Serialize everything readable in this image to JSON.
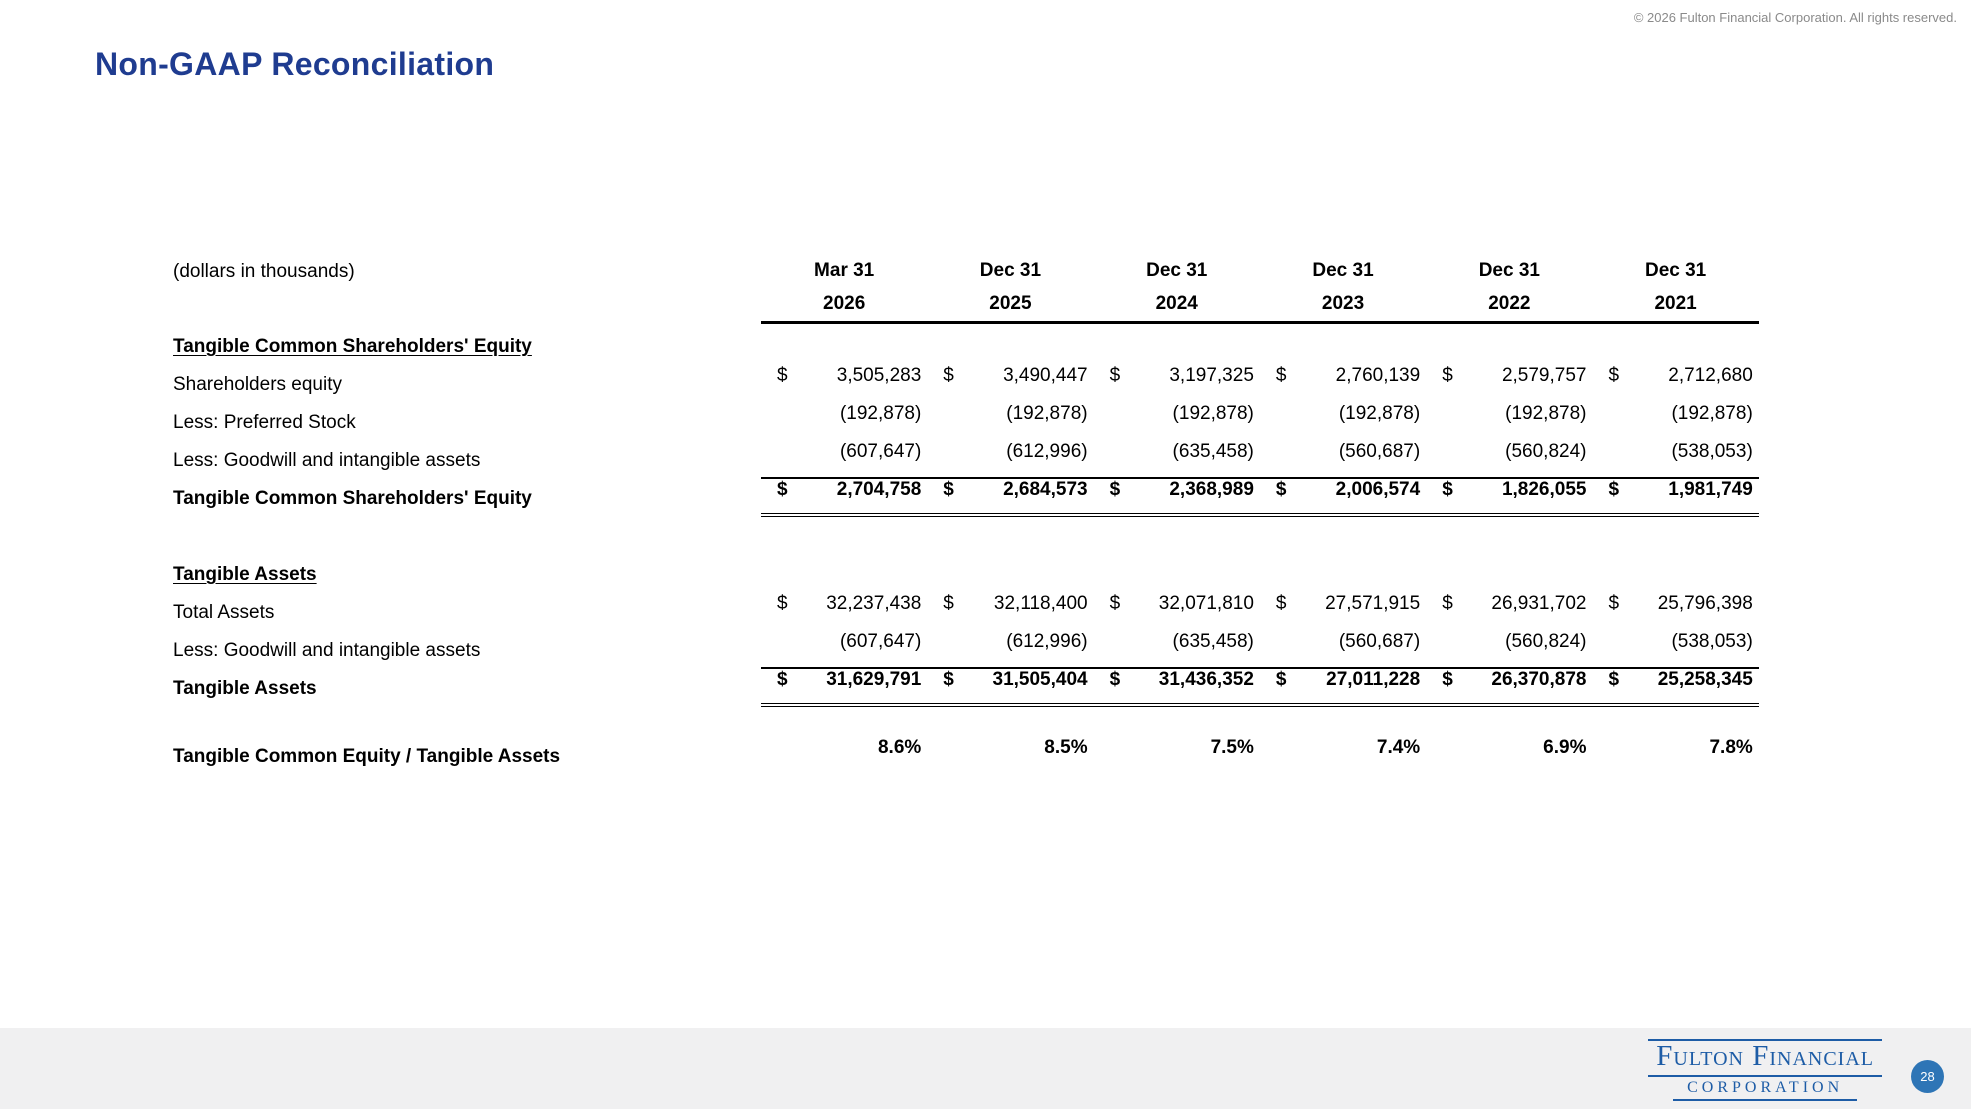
{
  "copyright": "© 2026 Fulton Financial Corporation. All rights reserved.",
  "title": "Non-GAAP Reconciliation",
  "table": {
    "units_label": "(dollars in thousands)",
    "columns": [
      {
        "month": "Mar 31",
        "year": "2026"
      },
      {
        "month": "Dec 31",
        "year": "2025"
      },
      {
        "month": "Dec 31",
        "year": "2024"
      },
      {
        "month": "Dec 31",
        "year": "2023"
      },
      {
        "month": "Dec 31",
        "year": "2022"
      },
      {
        "month": "Dec 31",
        "year": "2021"
      }
    ],
    "section1": {
      "heading": "Tangible Common Shareholders' Equity",
      "rows": [
        {
          "label": "Shareholders equity",
          "dollar": "$",
          "values": [
            "3,505,283",
            "3,490,447",
            "3,197,325",
            "2,760,139",
            "2,579,757",
            "2,712,680"
          ]
        },
        {
          "label": "Less: Preferred Stock",
          "values": [
            "(192,878)",
            "(192,878)",
            "(192,878)",
            "(192,878)",
            "(192,878)",
            "(192,878)"
          ]
        },
        {
          "label": "Less: Goodwill and intangible assets",
          "values": [
            "(607,647)",
            "(612,996)",
            "(635,458)",
            "(560,687)",
            "(560,824)",
            "(538,053)"
          ]
        },
        {
          "label": "Tangible Common Shareholders' Equity",
          "dollar": "$",
          "values": [
            "2,704,758",
            "2,684,573",
            "2,368,989",
            "2,006,574",
            "1,826,055",
            "1,981,749"
          ]
        }
      ]
    },
    "section2": {
      "heading": "Tangible Assets",
      "rows": [
        {
          "label": "Total Assets",
          "dollar": "$",
          "values": [
            "32,237,438",
            "32,118,400",
            "32,071,810",
            "27,571,915",
            "26,931,702",
            "25,796,398"
          ]
        },
        {
          "label": "Less: Goodwill and intangible assets",
          "values": [
            "(607,647)",
            "(612,996)",
            "(635,458)",
            "(560,687)",
            "(560,824)",
            "(538,053)"
          ]
        },
        {
          "label": "Tangible Assets",
          "dollar": "$",
          "values": [
            "31,629,791",
            "31,505,404",
            "31,436,352",
            "27,011,228",
            "26,370,878",
            "25,258,345"
          ]
        }
      ]
    },
    "ratio": {
      "label": "Tangible Common Equity / Tangible Assets",
      "values": [
        "8.6%",
        "8.5%",
        "7.5%",
        "7.4%",
        "6.9%",
        "7.8%"
      ]
    }
  },
  "footer": {
    "logo_line1": "Fulton Financial",
    "logo_line2": "CORPORATION",
    "page_number": "28"
  },
  "colors": {
    "title_blue": "#1f3c90",
    "logo_blue": "#1d5ca6",
    "badge_blue": "#2e75b6"
  }
}
